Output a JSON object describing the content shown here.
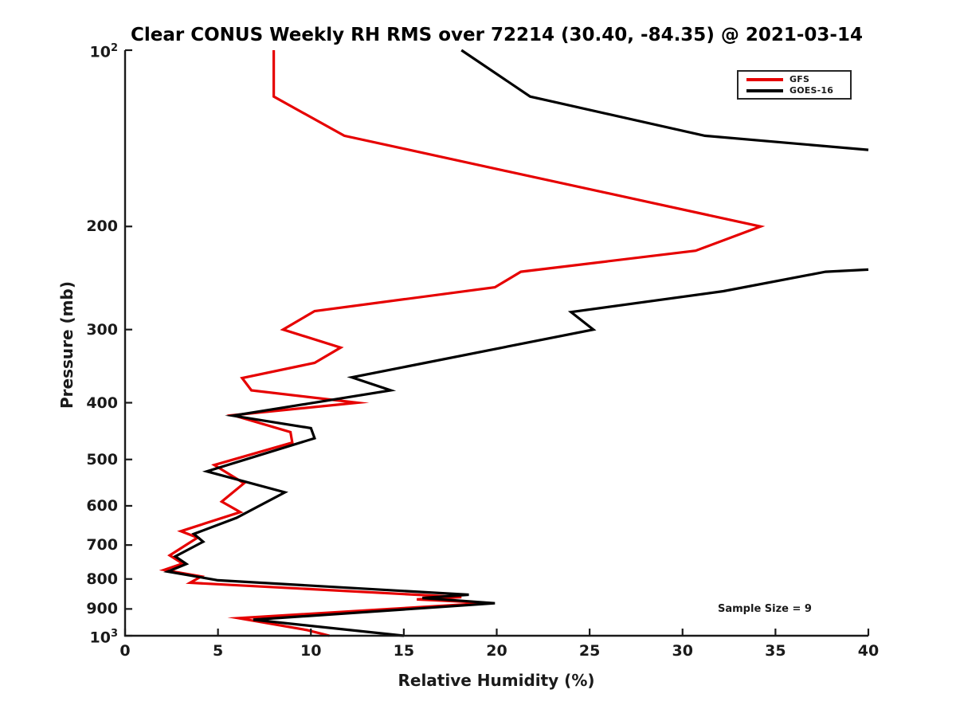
{
  "title": "Clear CONUS Weekly RH RMS over 72214 (30.40, -84.35) @ 2021-03-14",
  "annotation": {
    "sample_size": "Sample Size = 9"
  },
  "legend": {
    "items": [
      {
        "label": "GFS",
        "color": "#e60000"
      },
      {
        "label": "GOES-16",
        "color": "#000000"
      }
    ]
  },
  "colors": {
    "axis": "#1a1a1a",
    "background": "#ffffff",
    "gfs": "#e60000",
    "goes16": "#000000"
  },
  "chart_data": {
    "type": "line",
    "title": "Clear CONUS Weekly RH RMS over 72214 (30.40, -84.35) @ 2021-03-14",
    "xlabel": "Relative Humidity (%)",
    "ylabel": "Pressure (mb)",
    "x_range": [
      0,
      40
    ],
    "x_ticks": [
      0,
      5,
      10,
      15,
      20,
      25,
      30,
      35,
      40
    ],
    "y_scale": "log",
    "y_range": [
      100,
      1000
    ],
    "y_ticks": [
      200,
      300,
      400,
      500,
      600,
      700,
      800,
      900
    ],
    "y_end_ticks": [
      {
        "base": "10",
        "exp": "2",
        "value": 100
      },
      {
        "base": "10",
        "exp": "3",
        "value": 1000
      }
    ],
    "y_axis_inverted_note": "pressure increases downward",
    "grid": false,
    "legend_position": "upper right",
    "series": [
      {
        "name": "GFS",
        "color": "#e60000",
        "segments": [
          [
            [
              8.0,
              100
            ],
            [
              8.0,
              120
            ],
            [
              11.8,
              140
            ],
            [
              34.2,
              200
            ],
            [
              30.7,
              220
            ],
            [
              21.3,
              239
            ],
            [
              19.9,
              254
            ],
            [
              10.2,
              279
            ],
            [
              8.5,
              300
            ],
            [
              11.6,
              322
            ],
            [
              10.2,
              342
            ],
            [
              6.3,
              363
            ],
            [
              6.8,
              381
            ],
            [
              12.5,
              400
            ],
            [
              5.8,
              420
            ],
            [
              8.9,
              449
            ],
            [
              9.0,
              468
            ],
            [
              4.8,
              511
            ],
            [
              6.4,
              549
            ],
            [
              5.2,
              590
            ],
            [
              6.2,
              615
            ],
            [
              3.0,
              663
            ],
            [
              3.9,
              680
            ],
            [
              2.4,
              729
            ],
            [
              3.1,
              753
            ],
            [
              2.1,
              772
            ],
            [
              4.1,
              792
            ],
            [
              3.5,
              812
            ],
            [
              18.1,
              859
            ],
            [
              15.7,
              867
            ],
            [
              19.6,
              879
            ],
            [
              6.1,
              933
            ],
            [
              9.8,
              978
            ],
            [
              11.0,
              1000
            ]
          ]
        ]
      },
      {
        "name": "GOES-16",
        "color": "#000000",
        "segments": [
          [
            [
              18.1,
              100
            ],
            [
              21.8,
              120
            ],
            [
              31.2,
              140
            ],
            [
              40.0,
              148
            ]
          ],
          [
            [
              40.0,
              237
            ],
            [
              37.7,
              239
            ],
            [
              32.2,
              258
            ],
            [
              24.0,
              280
            ],
            [
              25.2,
              300
            ],
            [
              12.2,
              362
            ],
            [
              14.3,
              381
            ],
            [
              5.8,
              421
            ],
            [
              10.0,
              442
            ],
            [
              10.2,
              460
            ],
            [
              4.4,
              524
            ],
            [
              8.6,
              569
            ],
            [
              6.0,
              629
            ],
            [
              3.7,
              670
            ],
            [
              4.2,
              691
            ],
            [
              2.7,
              732
            ],
            [
              3.3,
              754
            ],
            [
              2.3,
              777
            ],
            [
              5.0,
              804
            ],
            [
              18.5,
              851
            ],
            [
              16.0,
              862
            ],
            [
              19.9,
              880
            ],
            [
              6.9,
              939
            ],
            [
              15.0,
              1000
            ]
          ]
        ]
      }
    ]
  }
}
